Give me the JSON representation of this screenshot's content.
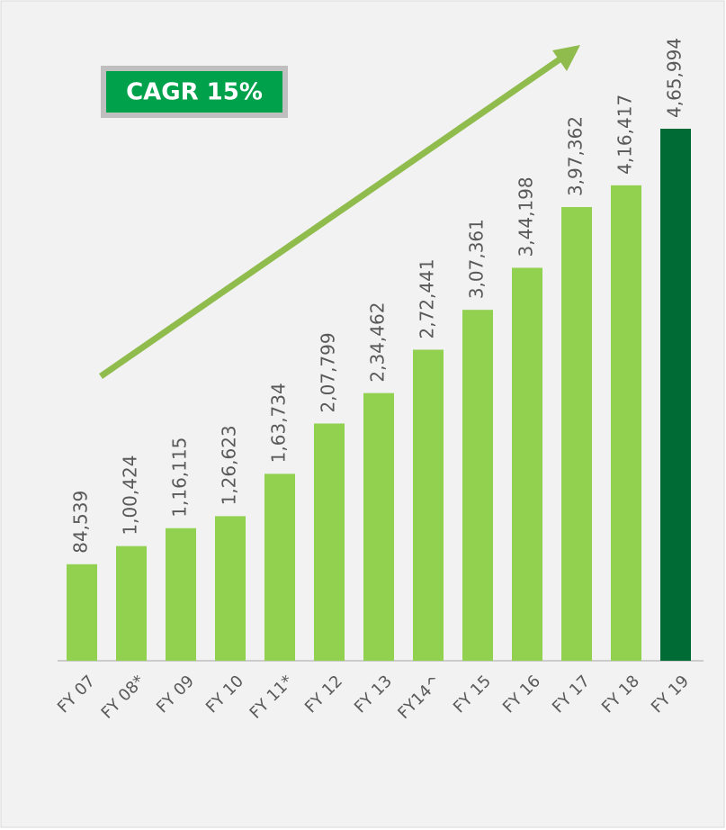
{
  "chart_data": {
    "type": "bar",
    "annotation": "CAGR 15%",
    "categories": [
      "FY 07",
      "FY 08*",
      "FY 09",
      "FY 10",
      "FY 11*",
      "FY 12",
      "FY 13",
      "FY14^",
      "FY 15",
      "FY 16",
      "FY 17",
      "FY 18",
      "FY 19"
    ],
    "values": [
      84539,
      100424,
      116115,
      126623,
      163734,
      207799,
      234462,
      272441,
      307361,
      344198,
      397362,
      416417,
      465994
    ],
    "value_labels": [
      "84,539",
      "1,00,424",
      "1,16,115",
      "1,26,623",
      "1,63,734",
      "2,07,799",
      "2,34,462",
      "2,72,441",
      "3,07,361",
      "3,44,198",
      "3,97,362",
      "4,16,417",
      "4,65,994"
    ],
    "colors": [
      "#92d050",
      "#92d050",
      "#92d050",
      "#92d050",
      "#92d050",
      "#92d050",
      "#92d050",
      "#92d050",
      "#92d050",
      "#92d050",
      "#92d050",
      "#92d050",
      "#006b35"
    ]
  }
}
